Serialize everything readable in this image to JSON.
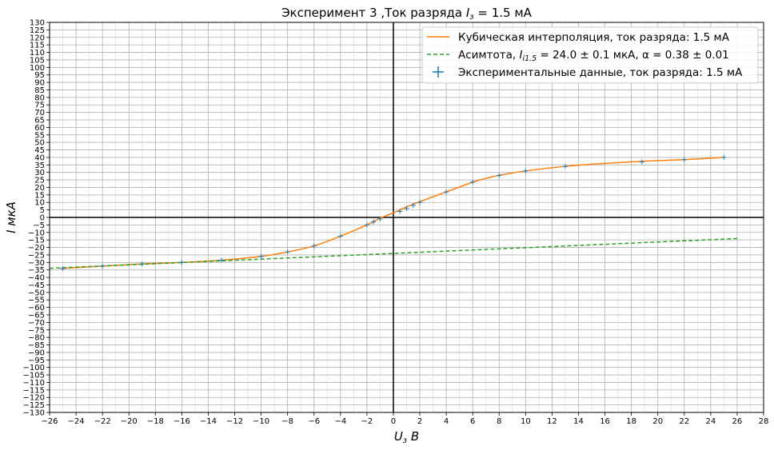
{
  "chart_data": {
    "type": "line",
    "title": "Эксперимент 3 ,Ток разряда I_з = 1.5 мА",
    "title_parts": {
      "main": "Эксперимент 3 ,Ток разряда ",
      "math": "I",
      "sub": "з",
      "rest": " = 1.5 мА"
    },
    "xlabel": {
      "main": "U",
      "sub": "з",
      "rest": " В"
    },
    "ylabel": "I мкА",
    "xlim": [
      -26,
      28
    ],
    "ylim": [
      -130,
      130
    ],
    "x_ticks": [
      -26,
      -24,
      -22,
      -20,
      -18,
      -16,
      -14,
      -12,
      -10,
      -8,
      -6,
      -4,
      -2,
      0,
      2,
      4,
      6,
      8,
      10,
      12,
      14,
      16,
      18,
      20,
      22,
      24,
      26,
      28
    ],
    "x_tick_labels": [
      "−26",
      "−24",
      "−22",
      "−20",
      "−18",
      "−16",
      "−14",
      "−12",
      "−10",
      "−8",
      "−6",
      "−4",
      "−2",
      "0",
      "2",
      "4",
      "6",
      "8",
      "10",
      "12",
      "14",
      "16",
      "18",
      "20",
      "22",
      "24",
      "26",
      "28"
    ],
    "x_minor_ticks": [
      -25,
      -23,
      -21,
      -19,
      -17,
      -15,
      -13,
      -11,
      -9,
      -7,
      -5,
      -3,
      -1,
      1,
      3,
      5,
      7,
      9,
      11,
      13,
      15,
      17,
      19,
      21,
      23,
      25,
      27
    ],
    "y_ticks": [
      130,
      125,
      120,
      115,
      110,
      105,
      100,
      95,
      90,
      85,
      80,
      75,
      70,
      65,
      60,
      55,
      50,
      45,
      40,
      35,
      30,
      25,
      20,
      15,
      10,
      5,
      0,
      -5,
      -10,
      -15,
      -20,
      -25,
      -30,
      -35,
      -40,
      -45,
      -50,
      -55,
      -60,
      -65,
      -70,
      -75,
      -80,
      -85,
      -90,
      -95,
      -100,
      -105,
      -110,
      -115,
      -120,
      -125,
      -130
    ],
    "y_tick_labels": [
      "130",
      "125",
      "120",
      "115",
      "110",
      "105",
      "100",
      "95",
      "90",
      "85",
      "80",
      "75",
      "70",
      "65",
      "60",
      "55",
      "50",
      "45",
      "40",
      "35",
      "30",
      "25",
      "20",
      "15",
      "10",
      "5",
      "0",
      "−5",
      "−10",
      "−15",
      "−20",
      "−25",
      "−30",
      "−35",
      "−40",
      "−45",
      "−50",
      "−55",
      "−60",
      "−65",
      "−70",
      "−75",
      "−80",
      "−85",
      "−90",
      "−95",
      "−100",
      "−105",
      "−110",
      "−115",
      "−120",
      "−125",
      "−130"
    ],
    "grid": true,
    "legend_position": "top-right",
    "series": [
      {
        "name": "Кубическая интерполяция, ток разряда: 1.5 мА",
        "kind": "line",
        "color": "#ff7f0e",
        "x": [
          -25.2,
          -22,
          -19,
          -16,
          -13,
          -10,
          -8,
          -6,
          -4,
          -2,
          -1,
          0,
          1,
          2,
          4,
          6,
          7,
          8,
          10,
          13,
          16,
          19,
          22,
          25
        ],
        "y": [
          -34,
          -32.5,
          -31,
          -30,
          -28.5,
          -26,
          -23,
          -19,
          -12.5,
          -5,
          -0.5,
          3,
          7,
          10.5,
          17,
          23.5,
          26,
          28,
          31,
          34,
          36,
          37.5,
          38.5,
          40
        ]
      },
      {
        "name_parts": {
          "main": "Асимтота, ",
          "math": "I",
          "sub": "i1.5",
          "rest": " = 24.0 ± 0.1 мкА,  α = 0.38 ± 0.01"
        },
        "name": "Асимтота, I_i1.5 = 24.0 ± 0.1 мкА, α = 0.38 ± 0.01",
        "kind": "dashed",
        "color": "#2ca02c",
        "x": [
          -26,
          26
        ],
        "y": [
          -33.9,
          -14.1
        ]
      },
      {
        "name": "Экспериментальные данные, ток разряда: 1.5 мА",
        "kind": "points",
        "color": "#1f77b4",
        "x": [
          -25,
          -22,
          -19,
          -16,
          -13,
          -10,
          -8,
          -6,
          -4,
          -2,
          -1.5,
          -1,
          0.5,
          1,
          1.5,
          2,
          4,
          6,
          8,
          10,
          13,
          18.8,
          22,
          25
        ],
        "y": [
          -34,
          -32.5,
          -31,
          -30,
          -28.5,
          -26,
          -23,
          -19,
          -12.5,
          -5,
          -3,
          -1,
          4,
          6,
          8,
          10,
          17,
          23.5,
          28,
          31,
          34,
          37,
          38.5,
          40
        ]
      }
    ]
  }
}
